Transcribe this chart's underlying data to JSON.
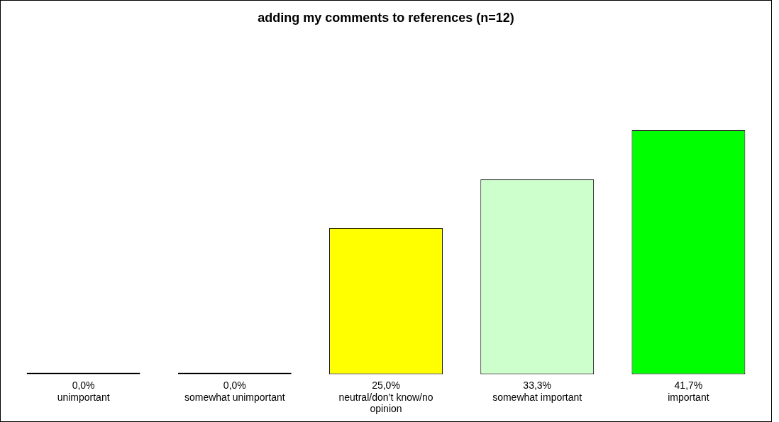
{
  "chart_data": {
    "type": "bar",
    "title": "adding my comments to references (n=12)",
    "categories": [
      "unimportant",
      "somewhat unimportant",
      "neutral/don’t know/no opinion",
      "somewhat important",
      "important"
    ],
    "values": [
      0.0,
      0.0,
      25.0,
      33.3,
      41.7
    ],
    "value_labels": [
      "0,0%",
      "0,0%",
      "25,0%",
      "33,3%",
      "41,7%"
    ],
    "colors": [
      "#000000",
      "#000000",
      "#ffff00",
      "#ccffcc",
      "#00ff00"
    ],
    "legend": false
  }
}
